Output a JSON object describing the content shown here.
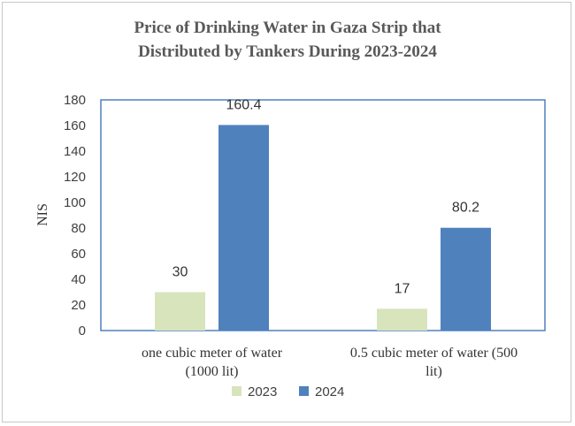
{
  "chart_data": {
    "type": "bar",
    "title_lines": [
      "Price of Drinking Water in Gaza Strip that",
      "Distributed by Tankers During 2023-2024"
    ],
    "categories": [
      [
        "one cubic meter  of water",
        "(1000 lit)"
      ],
      [
        "0.5 cubic meter  of water (500",
        "lit)"
      ]
    ],
    "series": [
      {
        "name": "2023",
        "values": [
          30,
          17
        ],
        "labels": [
          "30",
          "17"
        ],
        "color": "#d8e4bc"
      },
      {
        "name": "2024",
        "values": [
          160.4,
          80.2
        ],
        "labels": [
          "160.4",
          "80.2"
        ],
        "color": "#4f81bd"
      }
    ],
    "ylabel": "NIS",
    "ylim": [
      0,
      180
    ],
    "yticks": [
      0,
      20,
      40,
      60,
      80,
      100,
      120,
      140,
      160,
      180
    ],
    "grid": false,
    "legend": "bottom"
  }
}
